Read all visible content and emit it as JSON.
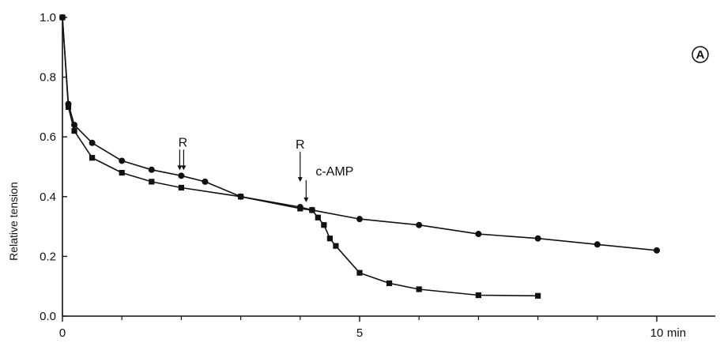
{
  "chart_data": {
    "type": "line",
    "title": "",
    "panel_label": "A",
    "xlabel": "",
    "x_unit": "min",
    "ylabel": "Relative tension",
    "xlim": [
      0,
      11
    ],
    "ylim": [
      0,
      1.0
    ],
    "x_ticks": [
      0,
      5,
      10
    ],
    "x_tick_labels": [
      "0",
      "5",
      "10"
    ],
    "x_minor_ticks": [
      1,
      2,
      3,
      4,
      6,
      7,
      8,
      9
    ],
    "y_ticks": [
      0,
      0.2,
      0.4,
      0.6,
      0.8,
      1.0
    ],
    "y_tick_labels": [
      "0.0",
      "0.2",
      "0.4",
      "0.6",
      "0.8",
      "1.0"
    ],
    "grid": false,
    "legend": "none",
    "series": [
      {
        "marker": "circle",
        "points": [
          [
            0,
            1.0
          ],
          [
            0.1,
            0.71
          ],
          [
            0.2,
            0.64
          ],
          [
            0.5,
            0.58
          ],
          [
            1.0,
            0.52
          ],
          [
            1.5,
            0.49
          ],
          [
            2.0,
            0.47
          ],
          [
            2.4,
            0.45
          ],
          [
            3.0,
            0.4
          ],
          [
            4.0,
            0.365
          ],
          [
            4.2,
            0.355
          ],
          [
            5.0,
            0.325
          ],
          [
            6.0,
            0.305
          ],
          [
            7.0,
            0.275
          ],
          [
            8.0,
            0.26
          ],
          [
            9.0,
            0.24
          ],
          [
            10.0,
            0.22
          ]
        ]
      },
      {
        "marker": "square",
        "points": [
          [
            0,
            1.0
          ],
          [
            0.1,
            0.7
          ],
          [
            0.2,
            0.62
          ],
          [
            0.5,
            0.53
          ],
          [
            1.0,
            0.48
          ],
          [
            1.5,
            0.45
          ],
          [
            2.0,
            0.43
          ],
          [
            3.0,
            0.4
          ],
          [
            4.0,
            0.36
          ],
          [
            4.2,
            0.355
          ],
          [
            4.3,
            0.33
          ],
          [
            4.4,
            0.305
          ],
          [
            4.5,
            0.26
          ],
          [
            4.6,
            0.235
          ],
          [
            5.0,
            0.145
          ],
          [
            5.5,
            0.11
          ],
          [
            6.0,
            0.09
          ],
          [
            7.0,
            0.07
          ],
          [
            8.0,
            0.068
          ]
        ]
      }
    ],
    "annotations": [
      {
        "text": "R",
        "x": 2.0,
        "y": 0.47,
        "arrows": 2
      },
      {
        "text": "R",
        "x": 4.0,
        "y": 0.37,
        "arrows": 1
      },
      {
        "text": "c-AMP",
        "x": 4.1,
        "y": 0.36,
        "arrows": 1
      }
    ]
  }
}
